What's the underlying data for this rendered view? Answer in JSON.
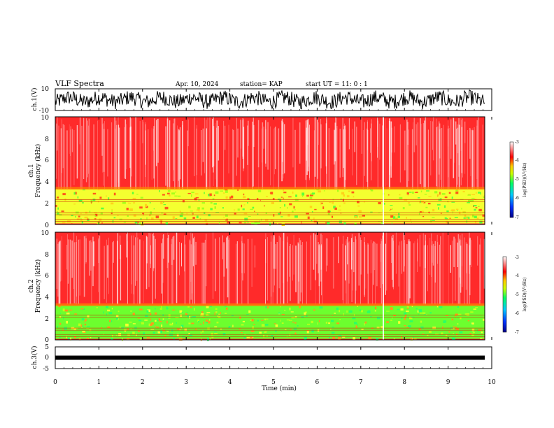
{
  "header": {
    "title": "VLF Spectra",
    "date": "Apr. 10, 2024",
    "station": "station= KAP",
    "start_ut": "start  UT =   11: 0  : 1"
  },
  "chart_data": [
    {
      "type": "line",
      "panel": "ch1-waveform",
      "ylabel": "ch.1(V)",
      "ylim": [
        -10,
        10
      ],
      "yticks": [
        "10",
        "-10"
      ],
      "xlim": [
        0,
        10
      ],
      "color": "#000000"
    },
    {
      "type": "heatmap",
      "panel": "ch1-spectrogram",
      "ylabel_line1": "ch.1",
      "ylabel_line2": "Frequency  (kHz)",
      "ylim": [
        0,
        10
      ],
      "yticks": [
        "0",
        "2",
        "4",
        "6",
        "8",
        "10"
      ],
      "xlim": [
        0,
        10
      ],
      "colorbar": {
        "label": "log(PSD)(V²/Hz)",
        "range": [
          -7,
          -3
        ],
        "ticks": [
          "-3",
          "-4",
          "-5",
          "-6",
          "-7"
        ],
        "colors": [
          "#000088",
          "#0033ff",
          "#00ccff",
          "#00ff66",
          "#ccff00",
          "#ffcc00",
          "#ff0000",
          "#ffffff"
        ]
      }
    },
    {
      "type": "heatmap",
      "panel": "ch2-spectrogram",
      "ylabel_line1": "ch.2",
      "ylabel_line2": "Frequency  (kHz)",
      "ylim": [
        0,
        10
      ],
      "yticks": [
        "0",
        "2",
        "4",
        "6",
        "8",
        "10"
      ],
      "xlim": [
        0,
        10
      ],
      "colorbar": {
        "label": "log(PSD)(V²/Hz)",
        "range": [
          -7,
          -3
        ],
        "ticks": [
          "-3",
          "-4",
          "-5",
          "-6",
          "-7"
        ],
        "colors": [
          "#000088",
          "#0033ff",
          "#00ccff",
          "#00ff66",
          "#ccff00",
          "#ffcc00",
          "#ff0000",
          "#ffffff"
        ]
      }
    },
    {
      "type": "line",
      "panel": "ch3-waveform",
      "ylabel": "ch.3(V)",
      "ylim": [
        -5,
        5
      ],
      "yticks": [
        "5",
        "0",
        "-5"
      ],
      "xlim": [
        0,
        10
      ],
      "level": 0,
      "color": "#000000"
    }
  ],
  "xaxis": {
    "label": "Time  (min)",
    "ticks": [
      "0",
      "1",
      "2",
      "3",
      "4",
      "5",
      "6",
      "7",
      "8",
      "9",
      "10"
    ]
  }
}
